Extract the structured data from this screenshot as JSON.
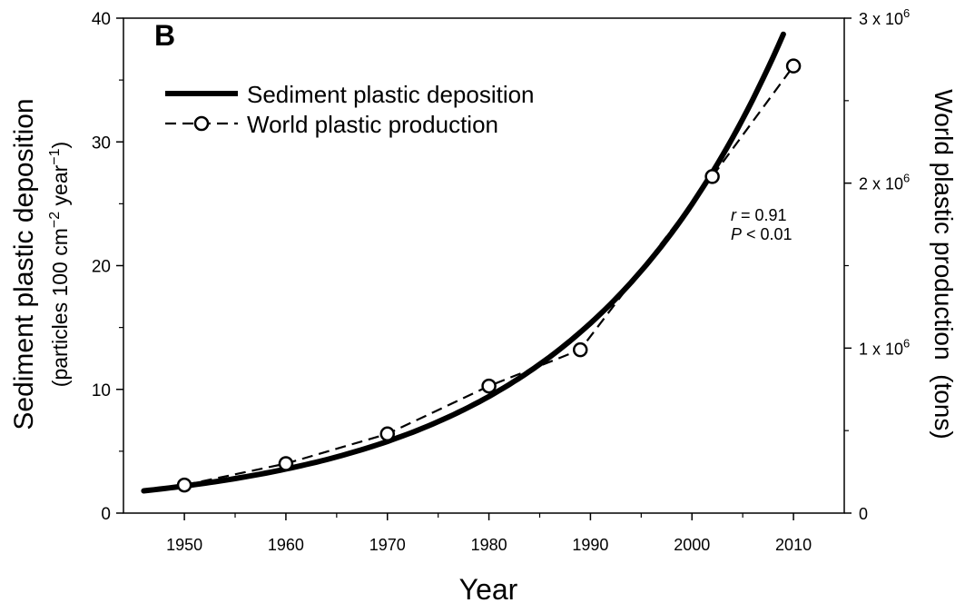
{
  "chart_data": {
    "type": "line",
    "panel_label": "B",
    "xlabel": "Year",
    "ylabel_line1": "Sediment plastic deposition",
    "ylabel_line2_prefix": "(particles 100 cm",
    "ylabel_line2_sup1": "−2",
    "ylabel_line2_mid": " year",
    "ylabel_line2_sup2": "−1",
    "ylabel_line2_suffix": ")",
    "y2label": "World plastic production  (tons)",
    "xlim": [
      1944,
      2015
    ],
    "ylim": [
      0,
      40
    ],
    "y2lim": [
      0,
      3000000
    ],
    "x_ticks": [
      "1950",
      "1960",
      "1970",
      "1980",
      "1990",
      "2000",
      "2010"
    ],
    "y_ticks": [
      "0",
      "10",
      "20",
      "30",
      "40"
    ],
    "y2_ticks": [
      {
        "value": 0,
        "base": "0",
        "exp": ""
      },
      {
        "value": 1000000,
        "base": "1 x 10",
        "exp": "6"
      },
      {
        "value": 2000000,
        "base": "2 x 10",
        "exp": "6"
      },
      {
        "value": 3000000,
        "base": "3 x 10",
        "exp": "6"
      }
    ],
    "series": [
      {
        "name": "Sediment plastic deposition",
        "axis": "left",
        "style": "solid-thick",
        "curve": {
          "a": 1.8,
          "b": 0.0487,
          "x0": 1946,
          "x_start": 1946,
          "x_end": 2009
        }
      },
      {
        "name": "World plastic production",
        "axis": "right",
        "style": "dashed-circles",
        "x": [
          1950,
          1960,
          1970,
          1980,
          1989,
          2002,
          2010
        ],
        "values": [
          170000,
          300000,
          480000,
          770000,
          990000,
          2040000,
          2710000
        ]
      }
    ],
    "annotation": {
      "r_label": "r",
      "r_value": " = 0.91",
      "p_label": "P",
      "p_value": " < 0.01"
    },
    "legend_position": "top-left",
    "grid": false
  }
}
